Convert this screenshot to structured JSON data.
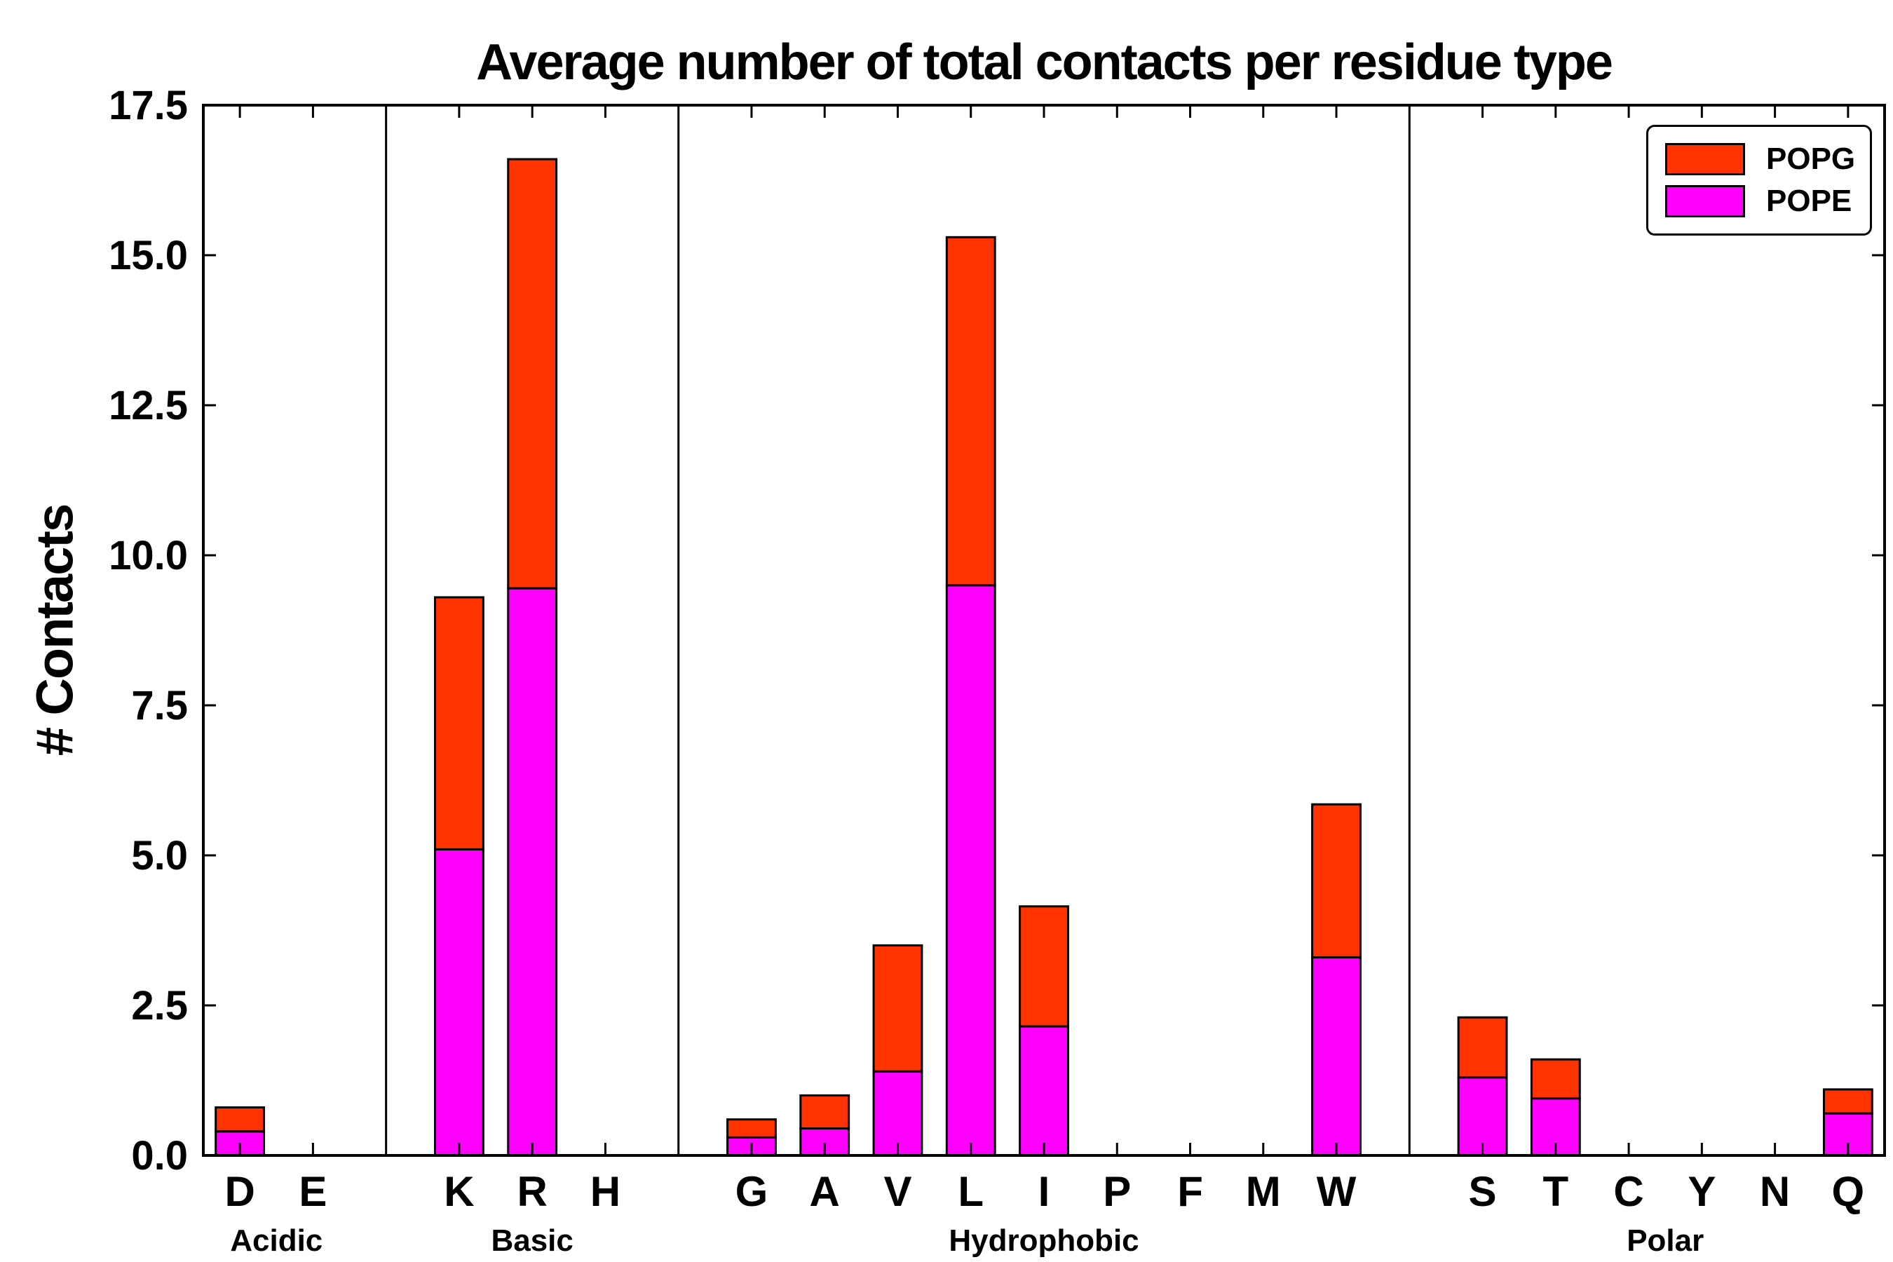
{
  "chart_data": {
    "type": "bar",
    "stacked": true,
    "title": "Average number of total contacts per residue type",
    "ylabel": "# Contacts",
    "xlabel": "",
    "ylim": [
      0,
      17.5
    ],
    "yticks": [
      0.0,
      2.5,
      5.0,
      7.5,
      10.0,
      12.5,
      15.0,
      17.5
    ],
    "grid": false,
    "categories": [
      "D",
      "E",
      "K",
      "R",
      "H",
      "G",
      "A",
      "V",
      "L",
      "I",
      "P",
      "F",
      "M",
      "W",
      "S",
      "T",
      "C",
      "Y",
      "N",
      "Q"
    ],
    "groups": [
      {
        "label": "Acidic",
        "residues": [
          "D",
          "E"
        ]
      },
      {
        "label": "Basic",
        "residues": [
          "K",
          "R",
          "H"
        ]
      },
      {
        "label": "Hydrophobic",
        "residues": [
          "G",
          "A",
          "V",
          "L",
          "I",
          "P",
          "F",
          "M",
          "W"
        ]
      },
      {
        "label": "Polar",
        "residues": [
          "S",
          "T",
          "C",
          "Y",
          "N",
          "Q"
        ]
      }
    ],
    "series": [
      {
        "name": "POPE",
        "color": "#ff00ff",
        "values": [
          0.4,
          0,
          5.1,
          9.45,
          0,
          0.3,
          0.45,
          1.4,
          9.5,
          2.15,
          0,
          0,
          0,
          3.3,
          1.3,
          0.95,
          0,
          0,
          0,
          0.7
        ]
      },
      {
        "name": "POPG",
        "color": "#ff3300",
        "values": [
          0.4,
          0,
          4.2,
          7.15,
          0,
          0.3,
          0.55,
          2.1,
          5.8,
          2.0,
          0,
          0,
          0,
          2.55,
          1.0,
          0.65,
          0,
          0,
          0,
          0.4
        ]
      }
    ],
    "totals": {
      "D": 0.8,
      "E": 0,
      "K": 9.3,
      "R": 16.6,
      "H": 0,
      "G": 0.6,
      "A": 1.0,
      "V": 3.5,
      "L": 15.3,
      "I": 4.15,
      "P": 0,
      "F": 0,
      "M": 0,
      "W": 5.85,
      "S": 2.3,
      "T": 1.6,
      "C": 0,
      "Y": 0,
      "N": 0,
      "Q": 1.1
    },
    "legend": {
      "position": "upper right",
      "entries": [
        "POPG",
        "POPE"
      ]
    },
    "axis_color": "#000000",
    "bar_edge_color": "#000000"
  }
}
